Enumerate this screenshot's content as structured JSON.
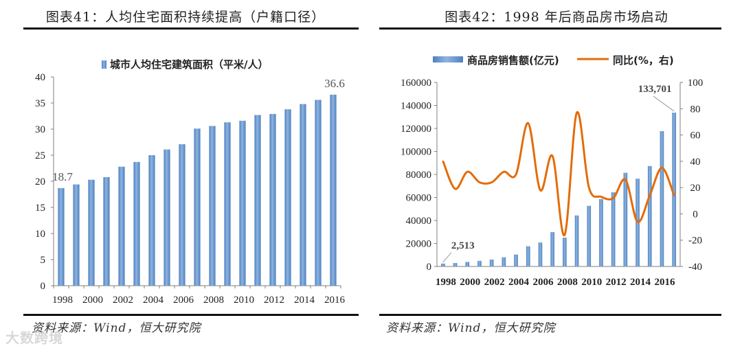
{
  "figures": [
    {
      "title": "图表41：人均住宅面积持续提高（户籍口径）",
      "source": "资料来源：Wind，恒大研究院"
    },
    {
      "title": "图表42：1998 年后商品房市场启动",
      "source": "资料来源：Wind，恒大研究院"
    }
  ],
  "watermark": "大数跨境",
  "colors": {
    "bar": "#4f81bd",
    "bar_light": "#8db4e2",
    "line": "#e36c09",
    "axis": "#7f7f7f",
    "rule": "#111111"
  },
  "chart_data": [
    {
      "type": "bar",
      "title": "",
      "legend": [
        "城市人均住宅建筑面积（平米/人）"
      ],
      "legend_position": "top",
      "x": [
        1998,
        1999,
        2000,
        2001,
        2002,
        2003,
        2004,
        2005,
        2006,
        2007,
        2008,
        2009,
        2010,
        2011,
        2012,
        2013,
        2014,
        2015,
        2016
      ],
      "x_tick_labels": [
        "1998",
        "2000",
        "2002",
        "2004",
        "2006",
        "2008",
        "2010",
        "2012",
        "2014",
        "2016"
      ],
      "values": [
        18.7,
        19.4,
        20.3,
        20.8,
        22.8,
        23.7,
        25.0,
        26.1,
        27.1,
        30.1,
        30.6,
        31.3,
        31.6,
        32.7,
        32.9,
        33.8,
        34.8,
        35.6,
        36.6
      ],
      "ylim": [
        0,
        40
      ],
      "y_ticks": [
        0,
        5,
        10,
        15,
        20,
        25,
        30,
        35,
        40
      ],
      "data_labels": [
        {
          "index": 0,
          "text": "18.7"
        },
        {
          "index": 18,
          "text": "36.6"
        }
      ],
      "grid": false
    },
    {
      "type": "bar+line",
      "legend": [
        "商品房销售额(亿元)",
        "同比(%，右)"
      ],
      "legend_position": "top",
      "x": [
        1998,
        1999,
        2000,
        2001,
        2002,
        2003,
        2004,
        2005,
        2006,
        2007,
        2008,
        2009,
        2010,
        2011,
        2012,
        2013,
        2014,
        2015,
        2016,
        2017
      ],
      "x_tick_labels": [
        "1998",
        "2000",
        "2002",
        "2004",
        "2006",
        "2008",
        "2010",
        "2012",
        "2014",
        "2016"
      ],
      "series": [
        {
          "name": "商品房销售额(亿元)",
          "type": "bar",
          "axis": "left",
          "values": [
            2513,
            2988,
            3936,
            4863,
            6032,
            7956,
            10376,
            17576,
            20826,
            29889,
            25068,
            44355,
            52721,
            58589,
            64456,
            81428,
            76292,
            87281,
            117627,
            133701
          ]
        },
        {
          "name": "同比(%，右)",
          "type": "line",
          "axis": "right",
          "values": [
            40,
            19,
            32,
            24,
            24,
            32,
            30,
            69,
            18,
            44,
            -16,
            77,
            20,
            13,
            12,
            26,
            -6,
            14,
            35,
            14
          ]
        }
      ],
      "ylim_left": [
        0,
        160000
      ],
      "y_ticks_left": [
        0,
        20000,
        40000,
        60000,
        80000,
        100000,
        120000,
        140000,
        160000
      ],
      "ylim_right": [
        -40,
        100
      ],
      "y_ticks_right": [
        -40,
        -20,
        0,
        20,
        40,
        60,
        80,
        100
      ],
      "annotations": [
        {
          "index": 0,
          "text": "2,513"
        },
        {
          "index": 19,
          "text": "133,701"
        }
      ],
      "grid": false
    }
  ]
}
